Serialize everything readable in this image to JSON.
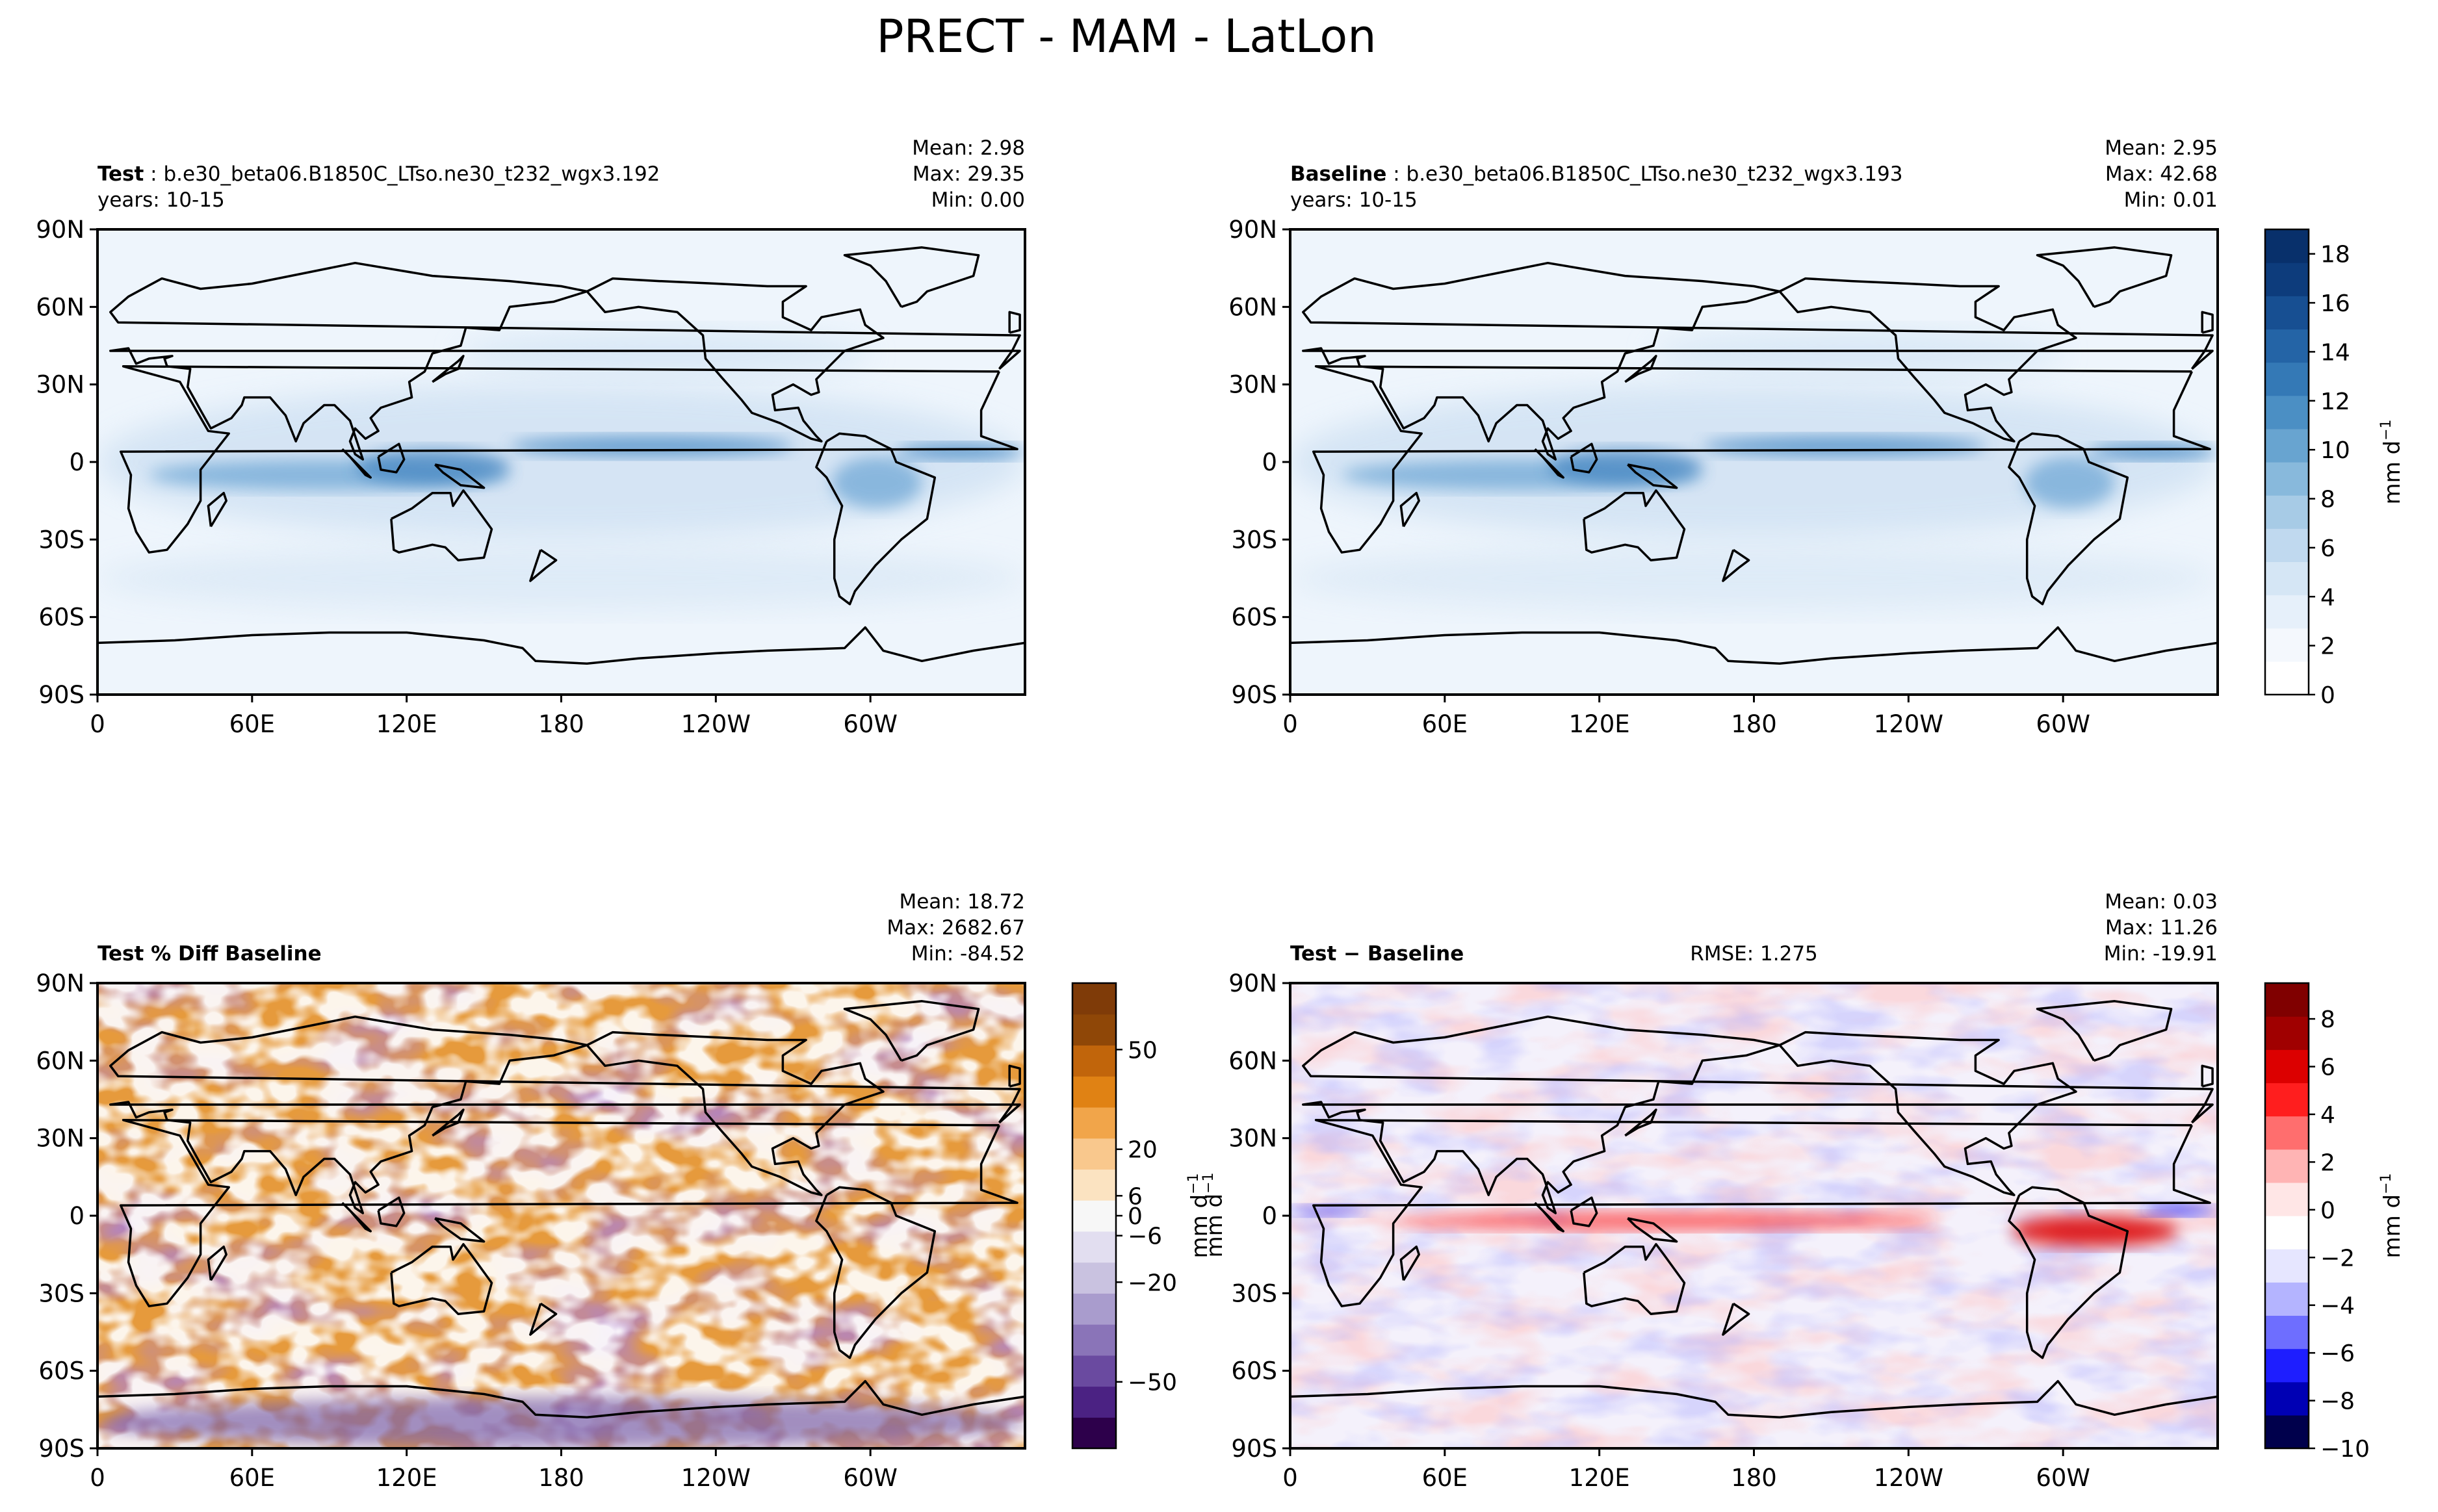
{
  "figure": {
    "title": "PRECT - MAM - LatLon"
  },
  "colors": {
    "background": "#ffffff",
    "axis": "#000000",
    "ocean_light": "#eef5fc",
    "blues": [
      "#ffffff",
      "#f4f8fd",
      "#e6f0fa",
      "#d5e6f5",
      "#c0d9ef",
      "#a7cbe6",
      "#88b9dc",
      "#68a4d0",
      "#4b8fc4",
      "#3479b6",
      "#2464a6",
      "#174f92",
      "#0d3c7c",
      "#08306b"
    ],
    "puor": [
      "#2d004b",
      "#4b2283",
      "#6a4aa0",
      "#8a74b8",
      "#a99ccd",
      "#c9c2e0",
      "#e2def0",
      "#f7f7f7",
      "#fbe3c1",
      "#f9c88d",
      "#f1a54a",
      "#e08214",
      "#c1650b",
      "#8f4707",
      "#7f3b08"
    ],
    "seismic": [
      "#00004c",
      "#0000b4",
      "#1e1eff",
      "#6e6eff",
      "#b4b4ff",
      "#e6e6ff",
      "#ffffff",
      "#ffe6e6",
      "#ffb4b4",
      "#ff6e6e",
      "#ff1e1e",
      "#dc0000",
      "#a00000",
      "#800000"
    ]
  },
  "chart_data": [
    {
      "type": "heatmap",
      "id": "test",
      "title_bold": "Test",
      "title_rest": " : b.e30_beta06.B1850C_LTso.ne30_t232_wgx3.192",
      "subtitle": "years: 10-15",
      "stats": [
        "Mean:  2.98",
        "Max: 29.35",
        "Min:  0.00"
      ],
      "xticks": [
        "0",
        "60E",
        "120E",
        "180",
        "120W",
        "60W"
      ],
      "yticks": [
        "90N",
        "60N",
        "30N",
        "0",
        "30S",
        "60S",
        "90S"
      ],
      "xlim": [
        0,
        360
      ],
      "ylim": [
        -90,
        90
      ],
      "colormap": "blues"
    },
    {
      "type": "heatmap",
      "id": "baseline",
      "title_bold": "Baseline",
      "title_rest": " : b.e30_beta06.B1850C_LTso.ne30_t232_wgx3.193",
      "subtitle": "years: 10-15",
      "stats": [
        "Mean:  2.95",
        "Max: 42.68",
        "Min:  0.01"
      ],
      "xticks": [
        "0",
        "60E",
        "120E",
        "180",
        "120W",
        "60W"
      ],
      "yticks": [
        "90N",
        "60N",
        "30N",
        "0",
        "30S",
        "60S",
        "90S"
      ],
      "xlim": [
        0,
        360
      ],
      "ylim": [
        -90,
        90
      ],
      "colormap": "blues",
      "colorbar": {
        "ticks": [
          "0",
          "2",
          "4",
          "6",
          "8",
          "10",
          "12",
          "14",
          "16",
          "18"
        ],
        "range": [
          0,
          19
        ],
        "label": "mm d"
      }
    },
    {
      "type": "heatmap",
      "id": "pctdiff",
      "title_bold": "Test % Diff Baseline",
      "title_rest": "",
      "subtitle": "",
      "stats": [
        "Mean: 18.72",
        "Max: 2682.67",
        "Min: -84.52"
      ],
      "xticks": [
        "0",
        "60E",
        "120E",
        "180",
        "120W",
        "60W"
      ],
      "yticks": [
        "90N",
        "60N",
        "30N",
        "0",
        "30S",
        "60S",
        "90S"
      ],
      "xlim": [
        0,
        360
      ],
      "ylim": [
        -90,
        90
      ],
      "colormap": "puor",
      "colorbar": {
        "ticks": [
          "50",
          "20",
          "6",
          "0",
          "−6",
          "−20",
          "−50"
        ],
        "range": [
          -70,
          70
        ],
        "label": "mm d"
      }
    },
    {
      "type": "heatmap",
      "id": "diff",
      "title_bold": "Test − Baseline",
      "title_rest": "",
      "center_text": "RMSE: 1.275",
      "subtitle": "",
      "stats": [
        "Mean:  0.03",
        "Max: 11.26",
        "Min: -19.91"
      ],
      "xticks": [
        "0",
        "60E",
        "120E",
        "180",
        "120W",
        "60W"
      ],
      "yticks": [
        "90N",
        "60N",
        "30N",
        "0",
        "30S",
        "60S",
        "90S"
      ],
      "xlim": [
        0,
        360
      ],
      "ylim": [
        -90,
        90
      ],
      "colormap": "seismic",
      "colorbar": {
        "ticks": [
          "8",
          "6",
          "4",
          "2",
          "0",
          "−2",
          "−4",
          "−6",
          "−8",
          "−10"
        ],
        "range": [
          -10,
          9.5
        ],
        "label": "mm d"
      }
    }
  ]
}
